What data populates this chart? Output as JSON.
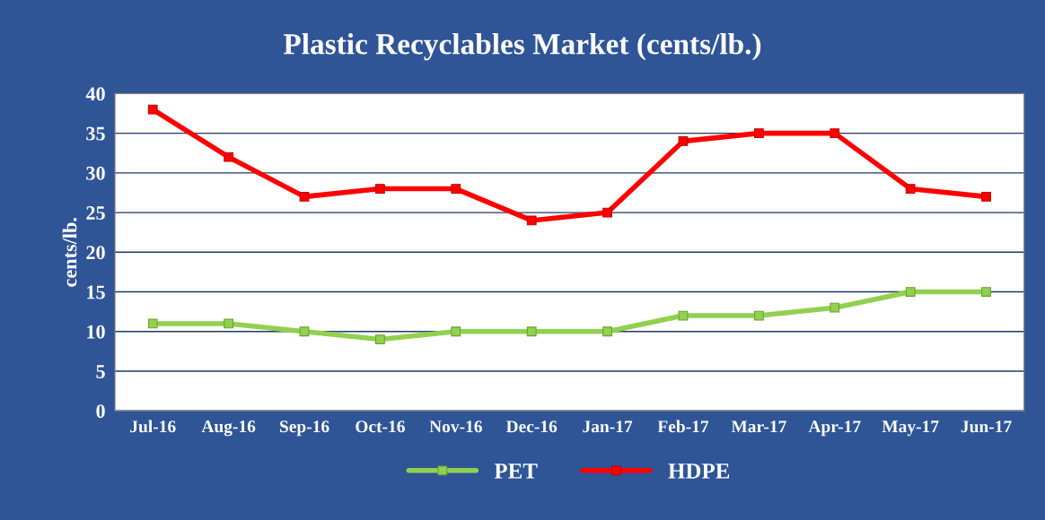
{
  "chart_data": {
    "type": "line",
    "title": "Plastic Recyclables Market (cents/lb.)",
    "ylabel": "cents/lb.",
    "categories": [
      "Jul-16",
      "Aug-16",
      "Sep-16",
      "Oct-16",
      "Nov-16",
      "Dec-16",
      "Jan-17",
      "Feb-17",
      "Mar-17",
      "Apr-17",
      "May-17",
      "Jun-17"
    ],
    "series": [
      {
        "name": "PET",
        "color": "#92d050",
        "values": [
          11,
          11,
          10,
          9,
          10,
          10,
          10,
          12,
          12,
          13,
          15,
          15
        ]
      },
      {
        "name": "HDPE",
        "color": "#ff0000",
        "values": [
          38,
          32,
          27,
          28,
          28,
          24,
          25,
          34,
          35,
          35,
          28,
          27
        ]
      }
    ],
    "ylim": [
      0,
      40
    ],
    "yticks": [
      0,
      5,
      10,
      15,
      20,
      25,
      30,
      35,
      40
    ],
    "grid": "y",
    "legend": "bottom",
    "marker": "square",
    "line_style": "solid"
  }
}
